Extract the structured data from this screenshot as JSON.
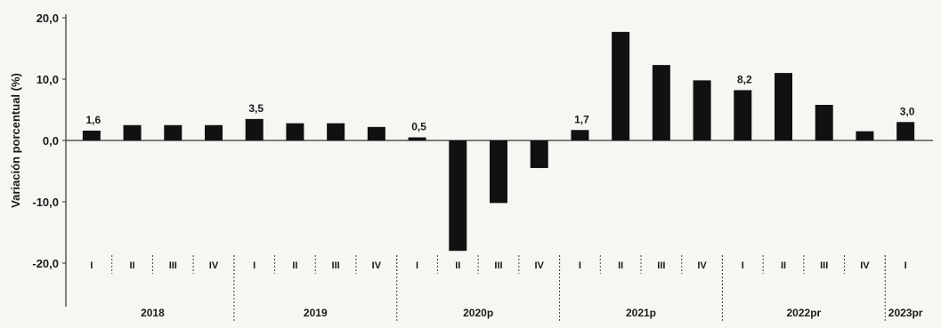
{
  "chart_data": {
    "type": "bar",
    "title": "",
    "xlabel": "",
    "ylabel": "Variación porcentual (%)",
    "ylim": [
      -20,
      20
    ],
    "yticks": [
      "20,0",
      "10,0",
      "0,0",
      "-10,0",
      "-20,0"
    ],
    "ytick_values": [
      20,
      10,
      0,
      -10,
      -20
    ],
    "bar_color": "#111111",
    "categories": [
      {
        "quarter": "I",
        "year": "2018",
        "value": 1.6
      },
      {
        "quarter": "II",
        "year": "2018",
        "value": 2.5
      },
      {
        "quarter": "III",
        "year": "2018",
        "value": 2.5
      },
      {
        "quarter": "IV",
        "year": "2018",
        "value": 2.5
      },
      {
        "quarter": "I",
        "year": "2019",
        "value": 3.5
      },
      {
        "quarter": "II",
        "year": "2019",
        "value": 2.8
      },
      {
        "quarter": "III",
        "year": "2019",
        "value": 2.8
      },
      {
        "quarter": "IV",
        "year": "2019",
        "value": 2.2
      },
      {
        "quarter": "I",
        "year": "2020p",
        "value": 0.5
      },
      {
        "quarter": "II",
        "year": "2020p",
        "value": -18.0
      },
      {
        "quarter": "III",
        "year": "2020p",
        "value": -10.2
      },
      {
        "quarter": "IV",
        "year": "2020p",
        "value": -4.5
      },
      {
        "quarter": "I",
        "year": "2021p",
        "value": 1.7
      },
      {
        "quarter": "II",
        "year": "2021p",
        "value": 17.7
      },
      {
        "quarter": "III",
        "year": "2021p",
        "value": 12.3
      },
      {
        "quarter": "IV",
        "year": "2021p",
        "value": 9.8
      },
      {
        "quarter": "I",
        "year": "2022pr",
        "value": 8.2
      },
      {
        "quarter": "II",
        "year": "2022pr",
        "value": 11.0
      },
      {
        "quarter": "III",
        "year": "2022pr",
        "value": 5.8
      },
      {
        "quarter": "IV",
        "year": "2022pr",
        "value": 1.5
      },
      {
        "quarter": "I",
        "year": "2023pr",
        "value": 3.0
      }
    ],
    "data_labels": [
      {
        "index": 0,
        "text": "1,6"
      },
      {
        "index": 4,
        "text": "3,5"
      },
      {
        "index": 8,
        "text": "0,5"
      },
      {
        "index": 12,
        "text": "1,7"
      },
      {
        "index": 16,
        "text": "8,2"
      },
      {
        "index": 20,
        "text": "3,0"
      }
    ],
    "year_groups": [
      {
        "label": "2018",
        "start": 0,
        "end": 3
      },
      {
        "label": "2019",
        "start": 4,
        "end": 7
      },
      {
        "label": "2020p",
        "start": 8,
        "end": 11
      },
      {
        "label": "2021p",
        "start": 12,
        "end": 15
      },
      {
        "label": "2022pr",
        "start": 16,
        "end": 19
      },
      {
        "label": "2023pr",
        "start": 20,
        "end": 20
      }
    ],
    "grid": false,
    "legend": "none"
  }
}
